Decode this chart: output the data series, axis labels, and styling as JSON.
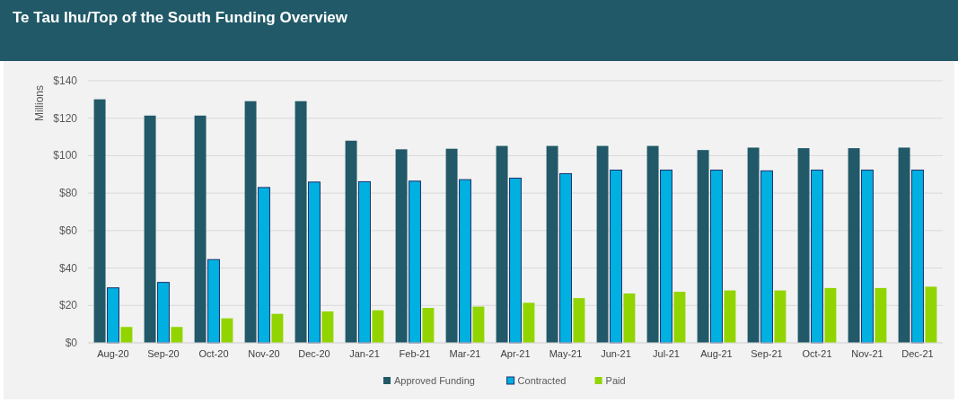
{
  "chart_data": {
    "type": "bar",
    "title": "Te Tau Ihu/Top of the South Funding Overview",
    "ylabel": "Millions",
    "categories": [
      "Aug-20",
      "Sep-20",
      "Oct-20",
      "Nov-20",
      "Dec-20",
      "Jan-21",
      "Feb-21",
      "Mar-21",
      "Apr-21",
      "May-21",
      "Jun-21",
      "Jul-21",
      "Aug-21",
      "Sep-21",
      "Oct-21",
      "Nov-21",
      "Dec-21"
    ],
    "series": [
      {
        "name": "Approved Funding",
        "color": "#215968",
        "values": [
          130.1,
          121.4,
          121.4,
          129.1,
          129.1,
          108,
          103.4,
          103.7,
          105.2,
          105.2,
          105.2,
          105.2,
          103,
          104.3,
          104,
          104,
          104.3
        ]
      },
      {
        "name": "Contracted",
        "color": "#00b0e0",
        "values": [
          29.4,
          32.3,
          44.5,
          83,
          85.9,
          86.1,
          86.4,
          87.2,
          88,
          90.4,
          92.3,
          92.3,
          92.3,
          91.9,
          92.3,
          92.3,
          92.3
        ]
      },
      {
        "name": "Paid",
        "color": "#92d400",
        "values": [
          8.5,
          8.5,
          13.1,
          15.5,
          16.8,
          17.4,
          18.7,
          19.4,
          21.4,
          23.9,
          26.4,
          27.3,
          28,
          28,
          29.3,
          29.3,
          30
        ]
      }
    ],
    "ylim": [
      0,
      140
    ],
    "yticks": [
      {
        "value": 0,
        "label": "$0"
      },
      {
        "value": 20,
        "label": "$20"
      },
      {
        "value": 40,
        "label": "$40"
      },
      {
        "value": 60,
        "label": "$60"
      },
      {
        "value": 80,
        "label": "$80"
      },
      {
        "value": 100,
        "label": "$100"
      },
      {
        "value": 120,
        "label": "$120"
      },
      {
        "value": 140,
        "label": "$140"
      }
    ],
    "grid": "y",
    "legend": "bottom"
  }
}
